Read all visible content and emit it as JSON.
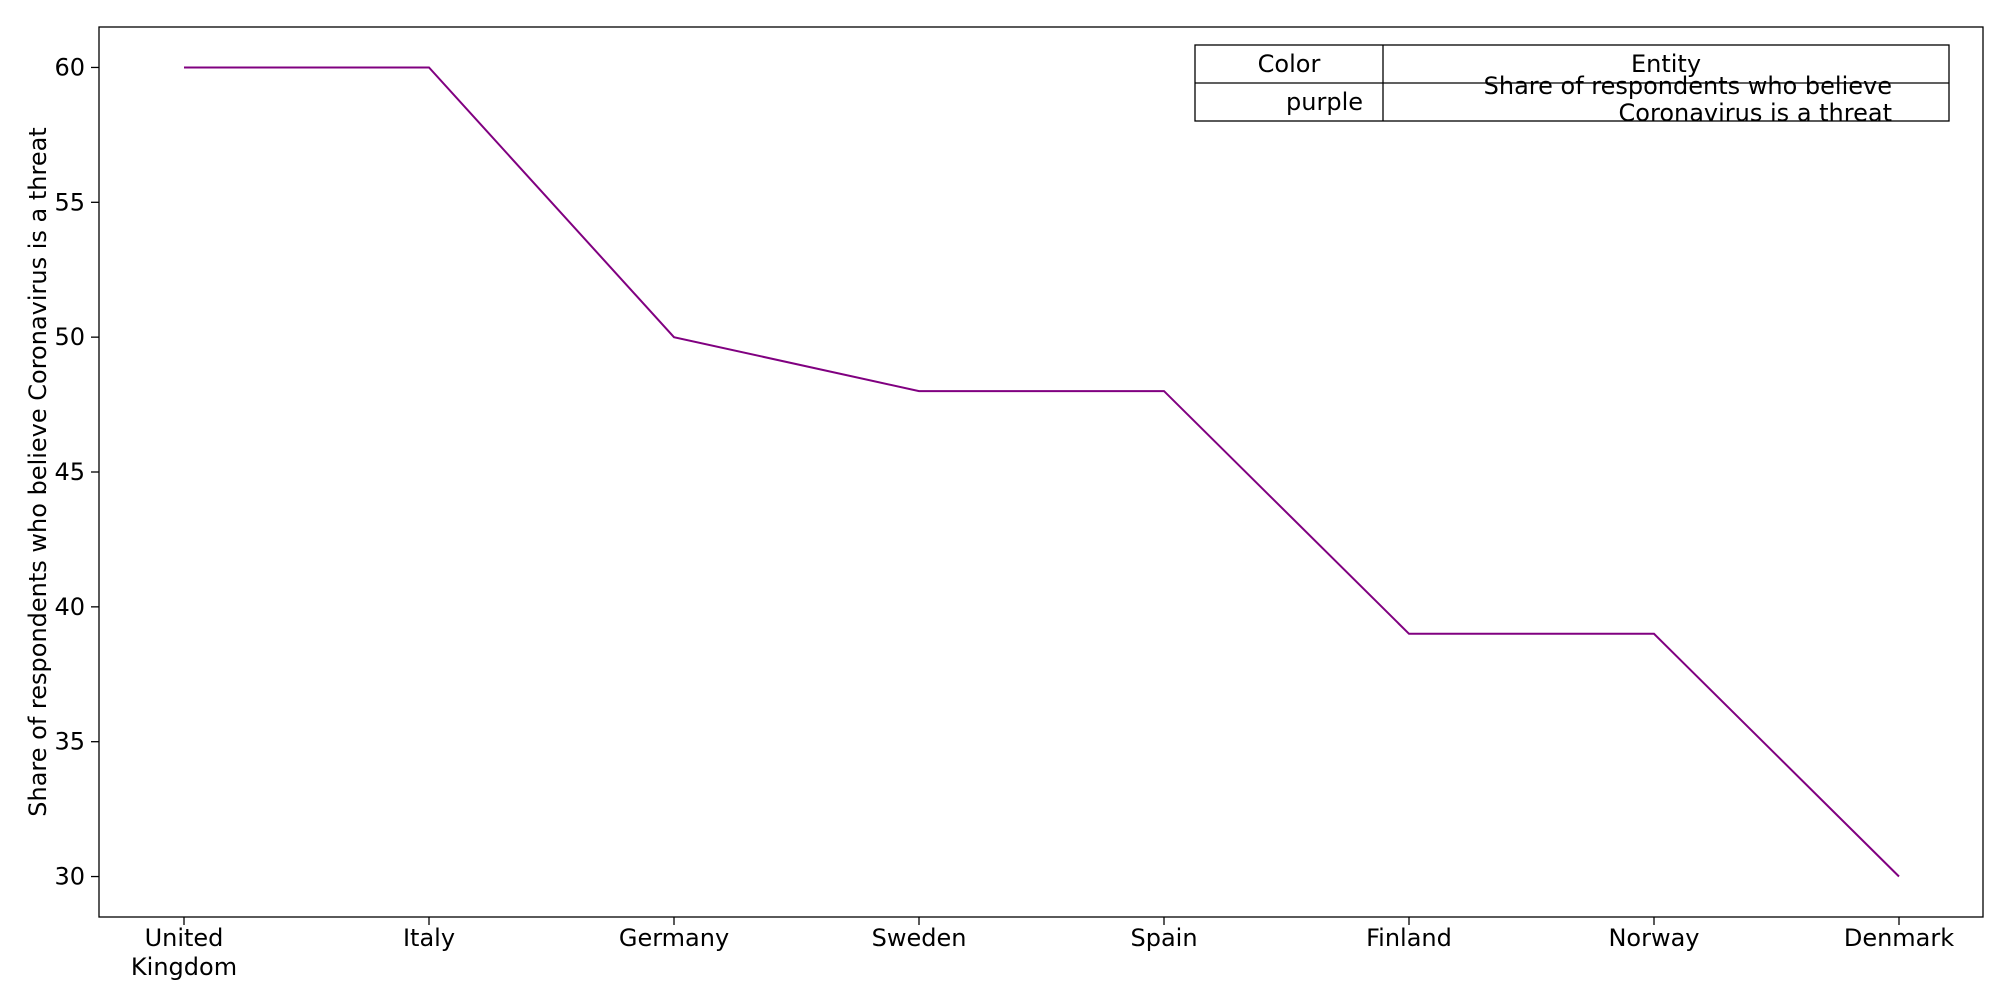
{
  "chart_data": {
    "type": "line",
    "categories": [
      "United Kingdom",
      "Italy",
      "Germany",
      "Sweden",
      "Spain",
      "Finland",
      "Norway",
      "Denmark"
    ],
    "category_lines": [
      [
        "United",
        "Kingdom"
      ],
      [
        "Italy"
      ],
      [
        "Germany"
      ],
      [
        "Sweden"
      ],
      [
        "Spain"
      ],
      [
        "Finland"
      ],
      [
        "Norway"
      ],
      [
        "Denmark"
      ]
    ],
    "series": [
      {
        "name": "Share of respondents who believe Coronavirus is a threat",
        "color": "#800080",
        "values": [
          60,
          60,
          50,
          48,
          48,
          39,
          39,
          30
        ]
      }
    ],
    "ylabel": "Share of respondents who believe Coronavirus is a threat",
    "xlabel": "",
    "ylim": [
      28.5,
      61.5
    ],
    "yticks": [
      30,
      35,
      40,
      45,
      50,
      55,
      60
    ],
    "grid": false,
    "legend": {
      "placement": "top-right",
      "headers": [
        "Color",
        "Entity"
      ],
      "rows": [
        {
          "color_name": "purple",
          "entity_lines": [
            "Share of respondents who believe",
            "Coronavirus is a threat"
          ]
        }
      ]
    }
  }
}
